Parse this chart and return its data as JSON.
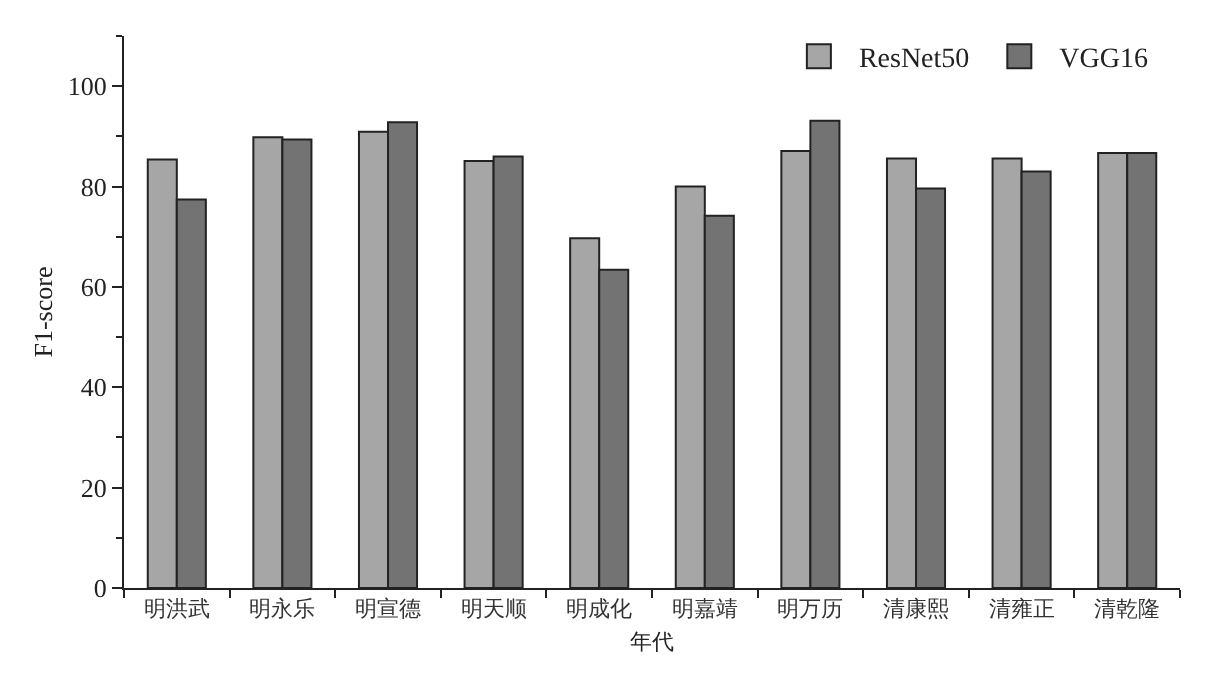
{
  "chart_data": {
    "type": "bar",
    "xlabel": "年代",
    "ylabel": "F1-score",
    "categories": [
      "明洪武",
      "明永乐",
      "明宣德",
      "明天顺",
      "明成化",
      "明嘉靖",
      "明万历",
      "清康熙",
      "清雍正",
      "清乾隆"
    ],
    "series": [
      {
        "name": "ResNet50",
        "color": "#a6a6a6",
        "values": [
          85.4,
          89.8,
          90.9,
          85.1,
          69.7,
          80.0,
          87.1,
          85.6,
          85.6,
          86.7
        ]
      },
      {
        "name": "VGG16",
        "color": "#737373",
        "values": [
          77.4,
          89.4,
          92.8,
          86.0,
          63.4,
          74.2,
          93.1,
          79.6,
          83.0,
          86.7
        ]
      }
    ],
    "ylim": [
      0,
      110
    ],
    "yticks": [
      0,
      20,
      40,
      60,
      80,
      100
    ],
    "grid": false,
    "legend": "top right"
  }
}
